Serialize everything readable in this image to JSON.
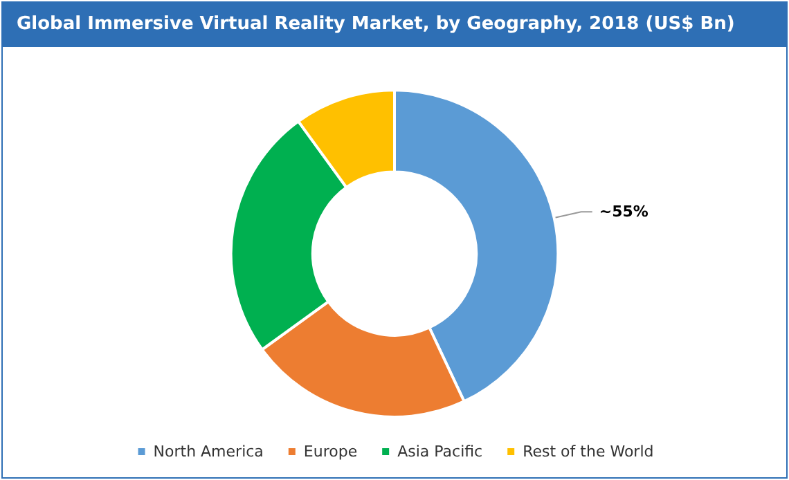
{
  "chart_data": {
    "type": "donut",
    "title": "Global Immersive Virtual Reality Market, by Geography, 2018 (US$ Bn)",
    "categories": [
      "North America",
      "Europe",
      "Asia Pacific",
      "Rest of the World"
    ],
    "values": [
      43,
      22,
      25,
      10
    ],
    "colors": [
      "#5b9bd5",
      "#ed7d31",
      "#00b050",
      "#ffc000"
    ],
    "annotations": [
      {
        "text": "~55%",
        "x": "North America"
      }
    ],
    "legend": "bottom"
  }
}
